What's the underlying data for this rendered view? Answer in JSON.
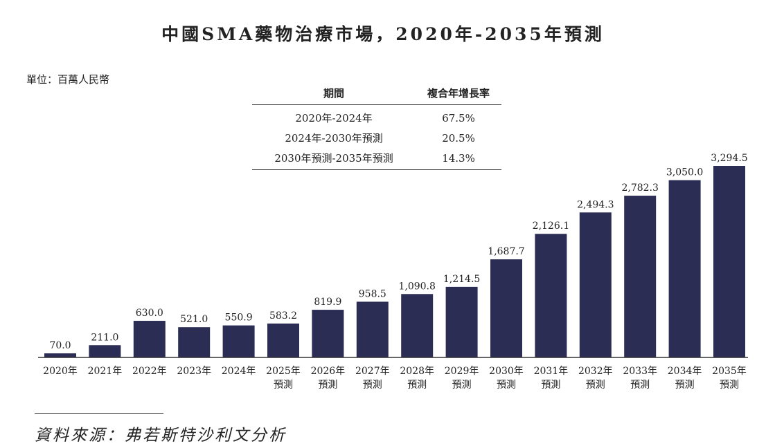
{
  "title": "中國SMA藥物治療市場，2020年-2035年預測",
  "unit_label": "單位：百萬人民幣",
  "cagr_table": {
    "headers": [
      "期間",
      "複合年增長率"
    ],
    "rows": [
      [
        "2020年-2024年",
        "67.5%"
      ],
      [
        "2024年-2030年預測",
        "20.5%"
      ],
      [
        "2030年預測-2035年預測",
        "14.3%"
      ]
    ]
  },
  "source": "資料來源：弗若斯特沙利文分析",
  "chart_data": {
    "type": "bar",
    "title": "中國SMA藥物治療市場，2020年-2035年預測",
    "categories": [
      [
        "2020年"
      ],
      [
        "2021年"
      ],
      [
        "2022年"
      ],
      [
        "2023年"
      ],
      [
        "2024年"
      ],
      [
        "2025年",
        "預測"
      ],
      [
        "2026年",
        "預測"
      ],
      [
        "2027年",
        "預測"
      ],
      [
        "2028年",
        "預測"
      ],
      [
        "2029年",
        "預測"
      ],
      [
        "2030年",
        "預測"
      ],
      [
        "2031年",
        "預測"
      ],
      [
        "2032年",
        "預測"
      ],
      [
        "2033年",
        "預測"
      ],
      [
        "2034年",
        "預測"
      ],
      [
        "2035年",
        "預測"
      ]
    ],
    "values": [
      70.0,
      211.0,
      630.0,
      521.0,
      550.9,
      583.2,
      819.9,
      958.5,
      1090.8,
      1214.5,
      1687.7,
      2126.1,
      2494.3,
      2782.3,
      3050.0,
      3294.5
    ],
    "value_labels": [
      "70.0",
      "211.0",
      "630.0",
      "521.0",
      "550.9",
      "583.2",
      "819.9",
      "958.5",
      "1,090.8",
      "1,214.5",
      "1,687.7",
      "2,126.1",
      "2,494.3",
      "2,782.3",
      "3,050.0",
      "3,294.5"
    ],
    "ylim": [
      0,
      3294.5
    ],
    "bar_color": "#2c2d55",
    "grid": false,
    "legend": "none"
  }
}
